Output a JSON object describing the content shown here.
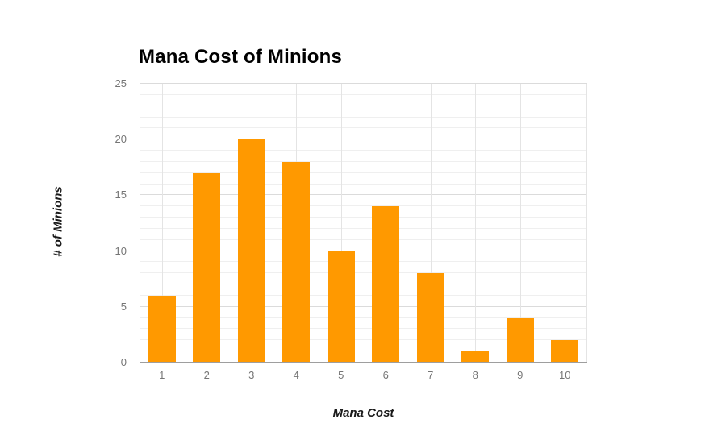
{
  "chart_data": {
    "type": "bar",
    "title": "Mana Cost of Minions",
    "xlabel": "Mana Cost",
    "ylabel": "# of Minions",
    "categories": [
      "1",
      "2",
      "3",
      "4",
      "5",
      "6",
      "7",
      "8",
      "9",
      "10"
    ],
    "values": [
      6,
      17,
      20,
      18,
      10,
      14,
      8,
      1,
      4,
      2
    ],
    "ylim": [
      0,
      25
    ],
    "yticks": [
      0,
      5,
      10,
      15,
      20,
      25
    ],
    "minor_grid_step": 1,
    "major_grid_step": 5,
    "grid": "on",
    "legend_position": "none",
    "colors": {
      "bar": "#FF9900",
      "title": "#000000",
      "axis_title": "#1A1A1A",
      "tick_label": "#757575",
      "minor_gridline": "#EFEFEF",
      "major_gridline": "#DBDBDB",
      "vertical_gridline": "#E4E4E4",
      "axis_line": "#9E9E9E",
      "background": "#FFFFFF"
    }
  }
}
